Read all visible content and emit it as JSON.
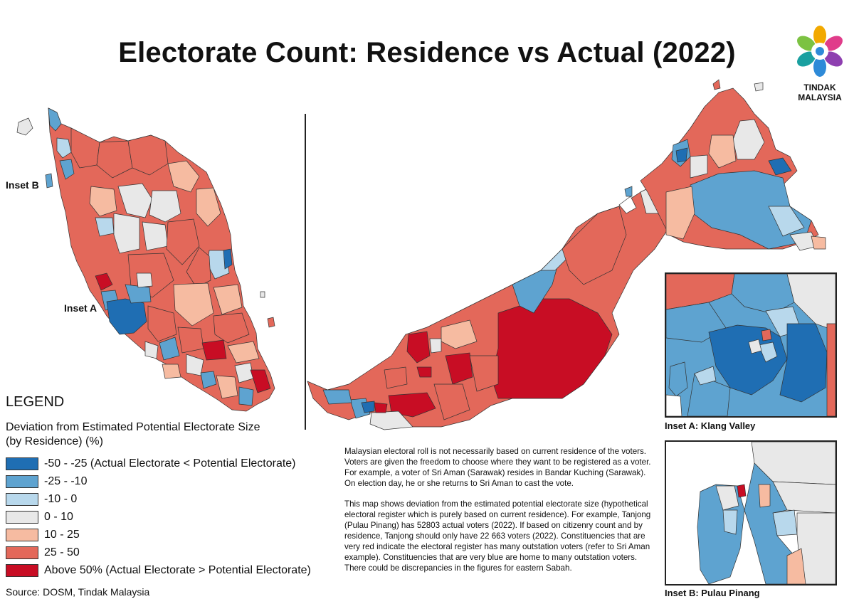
{
  "title": "Electorate Count: Residence vs Actual (2022)",
  "logo": {
    "line1": "TINDAK",
    "line2": "MALAYSIA",
    "icon": "tindak-malaysia-flower-icon"
  },
  "colors": {
    "c1": "#1f6eb3",
    "c2": "#5ea3d0",
    "c3": "#b8d8ec",
    "c4": "#e8e8e8",
    "c5": "#f6bba1",
    "c6": "#e3685a",
    "c7": "#c80d24",
    "outline": "#333333"
  },
  "map_labels": {
    "inset_b": "Inset B",
    "inset_a": "Inset A"
  },
  "legend": {
    "title": "LEGEND",
    "subtitle_line1": "Deviation from Estimated Potential Electorate Size",
    "subtitle_line2": "(by Residence) (%)",
    "items": [
      {
        "label": "-50 - -25 (Actual Electorate < Potential Electorate)",
        "color": "#1f6eb3"
      },
      {
        "label": "-25 - -10",
        "color": "#5ea3d0"
      },
      {
        "label": "-10 - 0",
        "color": "#b8d8ec"
      },
      {
        "label": "0 - 10",
        "color": "#e8e8e8"
      },
      {
        "label": "10 - 25",
        "color": "#f6bba1"
      },
      {
        "label": "25 - 50",
        "color": "#e3685a"
      },
      {
        "label": "Above 50% (Actual Electorate > Potential Electorate)",
        "color": "#c80d24"
      }
    ]
  },
  "source": "Source: DOSM, Tindak Malaysia",
  "notes": {
    "p1": "Malaysian electoral roll is not necessarily based on current residence of the voters. Voters are given the freedom to choose where they want to be registered as a voter. For example, a voter of Sri Aman (Sarawak) resides in Bandar Kuching (Sarawak). On election day, he or she returns to Sri Aman to cast the vote.",
    "p2": "This map shows deviation from the estimated potential electorate size (hypothetical electoral register which is purely based on current residence). For example, Tanjong (Pulau Pinang) has 52803 actual voters (2022). If based on citizenry count and by residence, Tanjong should only have 22 663 voters (2022). Constituencies that are very red indicate the electoral register has many outstation voters (refer to Sri Aman example). Constituencies that are very blue are home to many outstation voters. There could be discrepancies in the figures for eastern Sabah."
  },
  "insets": {
    "a_caption": "Inset A: Klang Valley",
    "b_caption": "Inset B: Pulau Pinang"
  }
}
